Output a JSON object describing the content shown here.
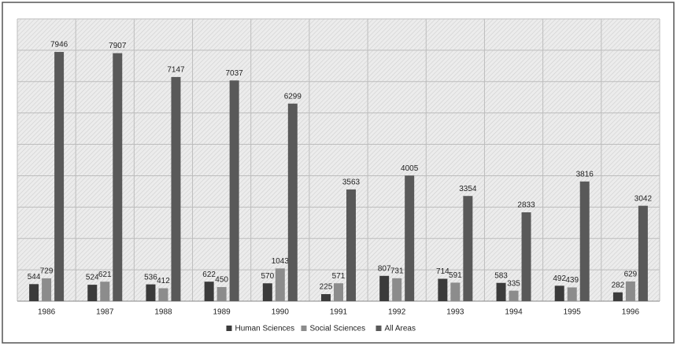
{
  "chart_data": {
    "type": "bar",
    "categories": [
      "1986",
      "1987",
      "1988",
      "1989",
      "1990",
      "1991",
      "1992",
      "1993",
      "1994",
      "1995",
      "1996"
    ],
    "series": [
      {
        "name": "Human Sciences",
        "color": "#3b3b3b",
        "values": [
          544,
          524,
          536,
          622,
          570,
          225,
          807,
          714,
          583,
          492,
          282
        ]
      },
      {
        "name": "Social Sciences",
        "color": "#8c8c8c",
        "values": [
          729,
          621,
          412,
          450,
          1043,
          571,
          731,
          591,
          335,
          439,
          629
        ]
      },
      {
        "name": "All Areas",
        "color": "#595959",
        "values": [
          7946,
          7907,
          7147,
          7037,
          6299,
          3563,
          4005,
          3354,
          2833,
          3816,
          3042
        ]
      }
    ],
    "ylim": [
      0,
      9000
    ],
    "yticks": [
      0,
      1000,
      2000,
      3000,
      4000,
      5000,
      6000,
      7000,
      8000,
      9000
    ],
    "grid": true,
    "legend": "bottom"
  }
}
